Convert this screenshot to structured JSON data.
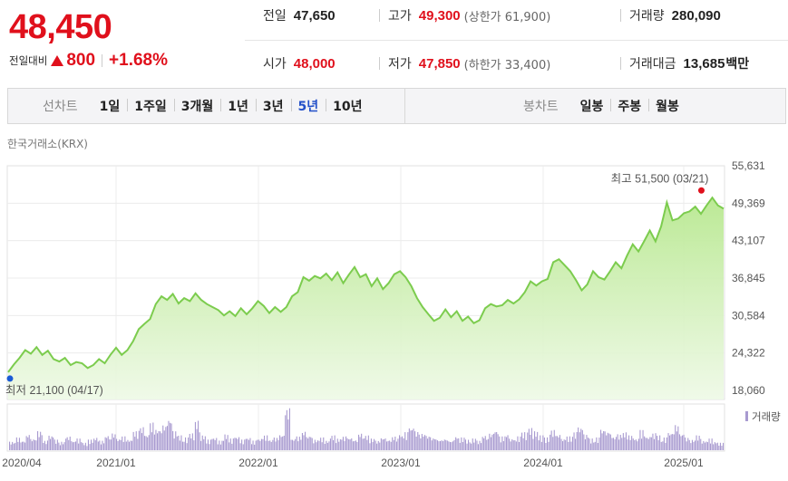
{
  "price": "48,450",
  "change": {
    "label": "전일대비",
    "value": "800",
    "percent": "+1.68%"
  },
  "stats": {
    "prev_close": {
      "label": "전일",
      "value": "47,650"
    },
    "high": {
      "label": "고가",
      "value": "49,300",
      "sub": "(상한가 61,900)"
    },
    "volume": {
      "label": "거래량",
      "value": "280,090"
    },
    "open": {
      "label": "시가",
      "value": "48,000"
    },
    "low": {
      "label": "저가",
      "value": "47,850",
      "sub": "(하한가 33,400)"
    },
    "amount": {
      "label": "거래대금",
      "value": "13,685",
      "unit": "백만"
    }
  },
  "line_chart_tabs": {
    "label": "선차트",
    "items": [
      "1일",
      "1주일",
      "3개월",
      "1년",
      "3년",
      "5년",
      "10년"
    ],
    "active": "5년"
  },
  "candle_chart_tabs": {
    "label": "봉차트",
    "items": [
      "일봉",
      "주봉",
      "월봉"
    ]
  },
  "exchange": "한국거래소(KRX)",
  "colors": {
    "up": "#e0101c",
    "down": "#1a5ad6",
    "line": "#7ccc4e",
    "volume": "#a89ad0"
  },
  "chart_data": {
    "type": "area",
    "ylim": [
      18060,
      55631
    ],
    "yticks": [
      "55,631",
      "49,369",
      "43,107",
      "36,845",
      "30,584",
      "24,322",
      "18,060"
    ],
    "ytick_values": [
      55631,
      49369,
      43107,
      36845,
      30584,
      24322,
      18060
    ],
    "xticks": [
      "2020/04",
      "2021/01",
      "2022/01",
      "2023/01",
      "2024/01",
      "2025/01"
    ],
    "high_label": "최고 51,500 (03/21)",
    "low_label": "최저 21,100 (04/17)",
    "volume_label": "거래량",
    "series": [
      {
        "values": [
          21100,
          22400,
          23500,
          24800,
          24200,
          25300,
          24000,
          24700,
          23300,
          22900,
          23500,
          22300,
          22800,
          22600,
          21800,
          22300,
          23300,
          22600,
          24000,
          25200,
          24000,
          24800,
          26300,
          28300,
          29200,
          30000,
          32500,
          33800,
          33200,
          34200,
          32600,
          33500,
          33000,
          34300,
          33200,
          32500,
          32000,
          31500,
          30600,
          31300,
          30500,
          31800,
          30800,
          31800,
          33000,
          32200,
          31000,
          32000,
          31200,
          32000,
          33800,
          34500,
          37000,
          36400,
          37200,
          36800,
          37600,
          36500,
          37800,
          36000,
          37400,
          38700,
          37000,
          37500,
          35500,
          36800,
          35000,
          36000,
          37500,
          38000,
          37000,
          35500,
          33500,
          32000,
          30800,
          29700,
          30200,
          31600,
          30300,
          31300,
          29700,
          30400,
          29300,
          29800,
          31800,
          32500,
          32100,
          32300,
          33200,
          32600,
          33300,
          34500,
          36300,
          35600,
          36300,
          36700,
          39500,
          40000,
          39000,
          38000,
          36500,
          34800,
          35800,
          38000,
          37000,
          36600,
          38000,
          39500,
          38500,
          40600,
          42500,
          41300,
          43000,
          44800,
          43000,
          45500,
          49500,
          46500,
          46800,
          47700,
          48000,
          48800,
          47600,
          49000,
          50300,
          49000,
          48450
        ]
      },
      {
        "name": "거래량",
        "values": [
          8,
          12,
          9,
          15,
          11,
          18,
          9,
          14,
          10,
          8,
          13,
          9,
          11,
          7,
          10,
          12,
          9,
          14,
          16,
          11,
          13,
          10,
          18,
          22,
          15,
          26,
          20,
          24,
          30,
          18,
          14,
          12,
          16,
          28,
          14,
          10,
          12,
          9,
          15,
          11,
          13,
          10,
          12,
          9,
          11,
          14,
          10,
          12,
          15,
          40,
          11,
          13,
          18,
          14,
          10,
          12,
          9,
          14,
          11,
          13,
          12,
          10,
          16,
          14,
          11,
          9,
          12,
          10,
          13,
          15,
          17,
          22,
          18,
          16,
          14,
          12,
          10,
          11,
          9,
          13,
          12,
          10,
          11,
          9,
          14,
          16,
          19,
          13,
          15,
          11,
          13,
          17,
          21,
          18,
          14,
          12,
          19,
          15,
          11,
          13,
          17,
          22,
          15,
          11,
          12,
          20,
          18,
          13,
          15,
          17,
          14,
          11,
          19,
          13,
          16,
          14,
          12,
          17,
          24,
          16,
          12,
          10,
          14,
          9,
          11,
          8,
          7
        ]
      }
    ]
  }
}
